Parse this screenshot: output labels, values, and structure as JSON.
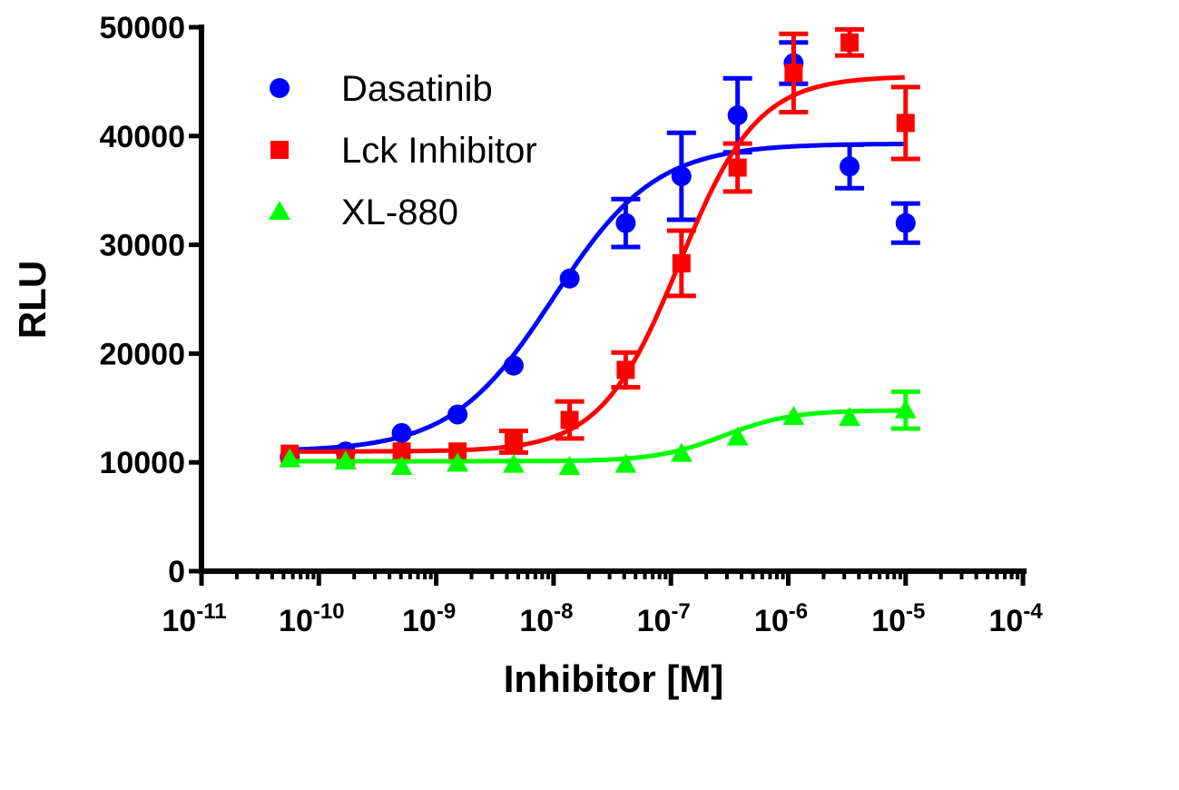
{
  "chart_data": {
    "type": "scatter",
    "title": "",
    "xlabel": "Inhibitor [M]",
    "ylabel": "RLU",
    "x_scale": "log",
    "xlim_log10": [
      -11,
      -4
    ],
    "ylim": [
      0,
      50000
    ],
    "grid": false,
    "legend_position": "top-left",
    "x_tick_labels": [
      {
        "base": "10",
        "exp": "-11"
      },
      {
        "base": "10",
        "exp": "-10"
      },
      {
        "base": "10",
        "exp": "-9"
      },
      {
        "base": "10",
        "exp": "-8"
      },
      {
        "base": "10",
        "exp": "-7"
      },
      {
        "base": "10",
        "exp": "-6"
      },
      {
        "base": "10",
        "exp": "-5"
      },
      {
        "base": "10",
        "exp": "-4"
      }
    ],
    "y_tick_labels": [
      "0",
      "10000",
      "20000",
      "30000",
      "40000",
      "50000"
    ],
    "x": [
      5.65e-11,
      1.69e-10,
      5.08e-10,
      1.52e-09,
      4.57e-09,
      1.37e-08,
      4.12e-08,
      1.23e-07,
      3.7e-07,
      1.11e-06,
      3.33e-06,
      1e-05
    ],
    "series": [
      {
        "name": "Dasatinib",
        "color": "#0000ff",
        "marker": "circle",
        "values": [
          10500,
          11000,
          12700,
          14400,
          18900,
          26900,
          32000,
          36300,
          41900,
          46700,
          37200,
          32000
        ],
        "errors": [
          0,
          0,
          0,
          0,
          0,
          0,
          2200,
          4000,
          3400,
          1900,
          2000,
          1800
        ],
        "fit": {
          "bottom": 11000,
          "top": 39300,
          "logEC50": -8.0,
          "hill": 1.0
        }
      },
      {
        "name": "Lck Inhibitor",
        "color": "#ff0000",
        "marker": "square",
        "values": [
          10800,
          10200,
          11000,
          11000,
          11900,
          13900,
          18500,
          28300,
          37100,
          45800,
          48600,
          41200
        ],
        "errors": [
          0,
          0,
          0,
          0,
          1000,
          1700,
          1600,
          3000,
          2200,
          3600,
          1200,
          3300
        ],
        "fit": {
          "bottom": 11000,
          "top": 45500,
          "logEC50": -6.93,
          "hill": 1.3
        }
      },
      {
        "name": "XL-880",
        "color": "#00ff00",
        "marker": "triangle",
        "values": [
          10300,
          10100,
          9600,
          9900,
          9800,
          9600,
          9800,
          10800,
          12300,
          14200,
          14100,
          14800
        ],
        "errors": [
          0,
          0,
          0,
          0,
          0,
          0,
          0,
          0,
          0,
          0,
          0,
          1700
        ],
        "fit": {
          "bottom": 10100,
          "top": 14800,
          "logEC50": -6.55,
          "hill": 1.5
        }
      }
    ]
  }
}
